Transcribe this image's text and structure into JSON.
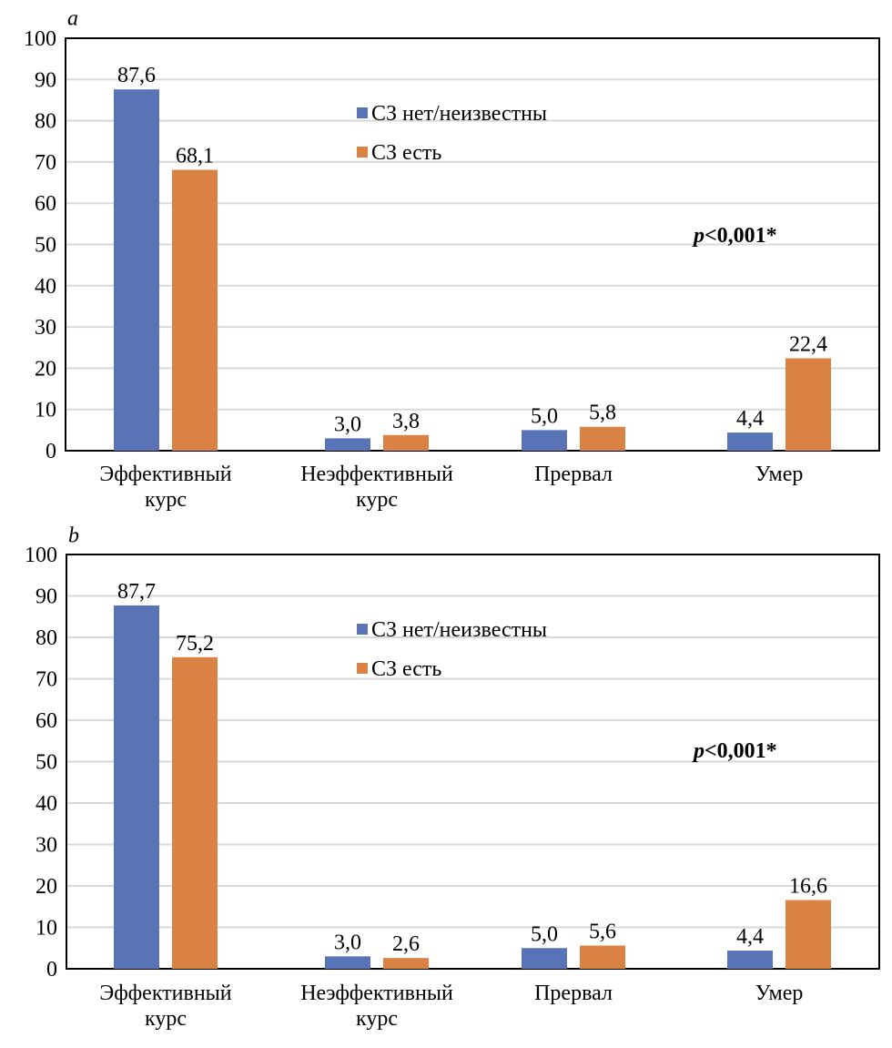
{
  "colors": {
    "series1": "#5874b6",
    "series2": "#d98244",
    "grid": "#d9d9d9",
    "axis": "#000000"
  },
  "chart_data": [
    {
      "type": "bar",
      "panel_label": "a",
      "categories": [
        [
          "Эффективный",
          "курс"
        ],
        [
          "Неэффективный",
          "курс"
        ],
        [
          "Прервал"
        ],
        [
          "Умер"
        ]
      ],
      "series": [
        {
          "name": "СЗ нет/неизвестны",
          "values": [
            87.6,
            3.0,
            5.0,
            4.4
          ],
          "labels": [
            "87,6",
            "3,0",
            "5,0",
            "4,4"
          ]
        },
        {
          "name": "СЗ есть",
          "values": [
            68.1,
            3.8,
            5.8,
            22.4
          ],
          "labels": [
            "68,1",
            "3,8",
            "5,8",
            "22,4"
          ]
        }
      ],
      "ylim": [
        0,
        100
      ],
      "yticks": [
        "0",
        "10",
        "20",
        "30",
        "40",
        "50",
        "60",
        "70",
        "80",
        "90",
        "100"
      ],
      "grid": true,
      "legend": "top-center",
      "annotation_p": "p",
      "annotation_rest": "<0,001*"
    },
    {
      "type": "bar",
      "panel_label": "b",
      "categories": [
        [
          "Эффективный",
          "курс"
        ],
        [
          "Неэффективный",
          "курс"
        ],
        [
          "Прервал"
        ],
        [
          "Умер"
        ]
      ],
      "series": [
        {
          "name": "СЗ нет/неизвестны",
          "values": [
            87.7,
            3.0,
            5.0,
            4.4
          ],
          "labels": [
            "87,7",
            "3,0",
            "5,0",
            "4,4"
          ]
        },
        {
          "name": "СЗ есть",
          "values": [
            75.2,
            2.6,
            5.6,
            16.6
          ],
          "labels": [
            "75,2",
            "2,6",
            "5,6",
            "16,6"
          ]
        }
      ],
      "ylim": [
        0,
        100
      ],
      "yticks": [
        "0",
        "10",
        "20",
        "30",
        "40",
        "50",
        "60",
        "70",
        "80",
        "90",
        "100"
      ],
      "grid": true,
      "legend": "top-center",
      "annotation_p": "p",
      "annotation_rest": "<0,001*"
    }
  ]
}
